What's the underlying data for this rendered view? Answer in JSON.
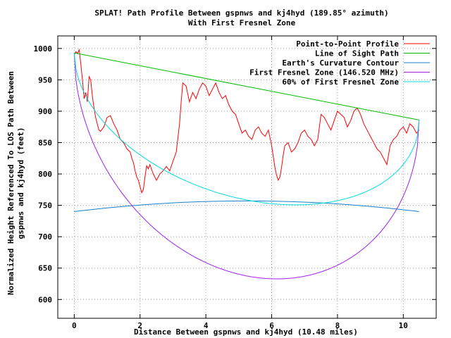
{
  "chart_data": {
    "type": "line",
    "title": "SPLAT! Path Profile Between gspnws and kj4hyd (189.85° azimuth)",
    "subtitle": "With First Fresnel Zone",
    "xlabel": "Distance Between gspnws and kj4hyd (10.48 miles)",
    "ylabel_lines": [
      "Normalized Height Referenced To LOS Path Between",
      "gspnws and kj4hyd (feet)"
    ],
    "xlim": [
      -0.5,
      11
    ],
    "ylim": [
      570,
      1020
    ],
    "xticks": [
      0,
      2,
      4,
      6,
      8,
      10
    ],
    "yticks": [
      600,
      650,
      700,
      750,
      800,
      850,
      900,
      950,
      1000
    ],
    "grid": true,
    "legend_position": "top-right",
    "series": [
      {
        "name": "Point-to-Point Profile",
        "color": "#ff0000",
        "x": [
          0,
          0.05,
          0.1,
          0.15,
          0.2,
          0.25,
          0.3,
          0.35,
          0.4,
          0.45,
          0.5,
          0.55,
          0.6,
          0.65,
          0.7,
          0.75,
          0.8,
          0.9,
          1.0,
          1.1,
          1.2,
          1.3,
          1.4,
          1.5,
          1.6,
          1.7,
          1.75,
          1.8,
          1.85,
          1.9,
          1.95,
          2.0,
          2.05,
          2.1,
          2.15,
          2.2,
          2.25,
          2.3,
          2.4,
          2.5,
          2.6,
          2.7,
          2.8,
          2.9,
          3.0,
          3.1,
          3.2,
          3.25,
          3.3,
          3.4,
          3.5,
          3.6,
          3.7,
          3.8,
          3.9,
          4.0,
          4.1,
          4.2,
          4.3,
          4.4,
          4.5,
          4.6,
          4.7,
          4.8,
          4.9,
          5.0,
          5.1,
          5.2,
          5.3,
          5.4,
          5.5,
          5.6,
          5.7,
          5.8,
          5.9,
          6.0,
          6.1,
          6.15,
          6.2,
          6.25,
          6.3,
          6.35,
          6.4,
          6.5,
          6.6,
          6.7,
          6.8,
          6.9,
          7.0,
          7.1,
          7.2,
          7.3,
          7.4,
          7.5,
          7.6,
          7.7,
          7.8,
          7.9,
          8.0,
          8.1,
          8.2,
          8.3,
          8.4,
          8.5,
          8.6,
          8.7,
          8.8,
          8.9,
          9.0,
          9.1,
          9.2,
          9.3,
          9.4,
          9.5,
          9.6,
          9.7,
          9.8,
          9.9,
          10.0,
          10.1,
          10.2,
          10.3,
          10.4,
          10.48
        ],
        "values": [
          990,
          995,
          992,
          998,
          975,
          950,
          920,
          930,
          915,
          955,
          950,
          925,
          905,
          890,
          880,
          870,
          868,
          875,
          890,
          893,
          880,
          870,
          855,
          850,
          840,
          835,
          825,
          818,
          805,
          795,
          790,
          780,
          770,
          775,
          795,
          813,
          808,
          815,
          800,
          790,
          800,
          805,
          812,
          805,
          820,
          835,
          880,
          915,
          945,
          940,
          915,
          930,
          920,
          935,
          945,
          940,
          925,
          935,
          945,
          930,
          920,
          925,
          910,
          900,
          895,
          880,
          865,
          870,
          860,
          855,
          870,
          875,
          865,
          860,
          870,
          845,
          810,
          798,
          790,
          795,
          810,
          830,
          845,
          850,
          835,
          840,
          850,
          865,
          870,
          860,
          855,
          845,
          855,
          895,
          890,
          880,
          870,
          885,
          900,
          895,
          890,
          875,
          885,
          900,
          905,
          895,
          880,
          870,
          860,
          850,
          840,
          835,
          825,
          815,
          845,
          855,
          860,
          870,
          875,
          865,
          880,
          875,
          865,
          870
        ]
      },
      {
        "name": "Line of Sight Path",
        "color": "#00bb00",
        "x": [
          0,
          10.48
        ],
        "values": [
          993,
          886
        ]
      },
      {
        "name": "Earth's Curvature Contour",
        "color": "#1a7fc8",
        "function": "curvature",
        "x_range": [
          0,
          10.48
        ],
        "end_value": 740,
        "mid_value": 757
      },
      {
        "name": "First Fresnel Zone (146.520 MHz)",
        "color": "#a020f0",
        "function": "fresnel",
        "x_range": [
          0,
          10.48
        ],
        "radius_ft": 302
      },
      {
        "name": "60% of First Fresnel Zone",
        "color": "#00dddd",
        "function": "fresnel",
        "x_range": [
          0,
          10.48
        ],
        "radius_ft": 181
      }
    ]
  }
}
